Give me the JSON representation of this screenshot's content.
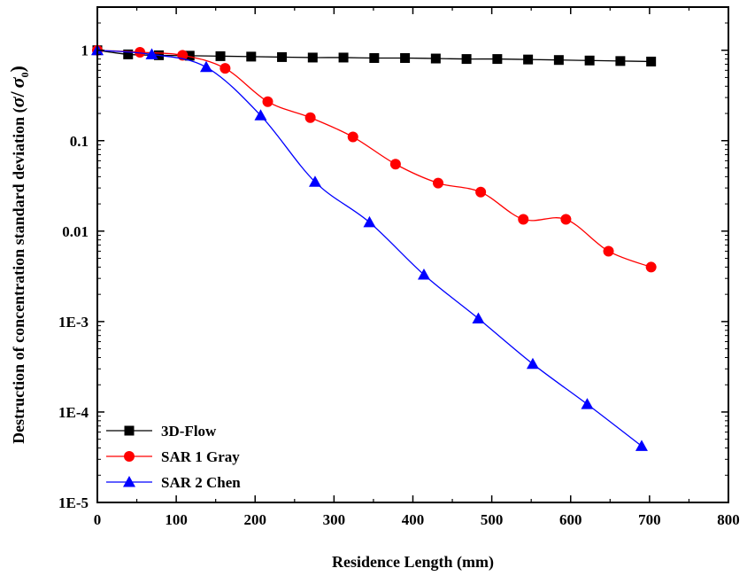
{
  "chart_data": {
    "type": "line",
    "xlabel": "Residence Length (mm)",
    "ylabel_text": "Destruction of concentration standard deviation (",
    "ylabel_sigma": "σ",
    "ylabel_slash": "/",
    "ylabel_sigma0": "σ",
    "ylabel_sub": "0",
    "ylabel_close": ")",
    "xlim": [
      0,
      800
    ],
    "ylim": [
      1e-05,
      3
    ],
    "yscale": "log",
    "x_ticks": [
      "0",
      "100",
      "200",
      "300",
      "400",
      "500",
      "600",
      "700",
      "800"
    ],
    "y_ticks": [
      "1E-5",
      "1E-4",
      "1E-3",
      "0.01",
      "0.1",
      "1"
    ],
    "legend_position": "bottom-left",
    "series": [
      {
        "name": "3D-Flow",
        "color": "#000000",
        "marker": "square",
        "x": [
          0,
          39,
          78,
          117,
          156,
          195,
          234,
          273,
          312,
          351,
          390,
          429,
          468,
          507,
          546,
          585,
          624,
          663,
          702
        ],
        "y": [
          1.0,
          0.9,
          0.88,
          0.87,
          0.86,
          0.85,
          0.84,
          0.83,
          0.83,
          0.82,
          0.82,
          0.81,
          0.8,
          0.8,
          0.79,
          0.78,
          0.77,
          0.76,
          0.75
        ]
      },
      {
        "name": "SAR 1 Gray",
        "color": "#ff0000",
        "marker": "circle",
        "x": [
          0,
          54,
          108,
          162,
          216,
          270,
          324,
          378,
          432,
          486,
          540,
          594,
          648,
          702
        ],
        "y": [
          1.0,
          0.95,
          0.88,
          0.63,
          0.27,
          0.18,
          0.11,
          0.055,
          0.034,
          0.027,
          0.0135,
          0.0135,
          0.006,
          0.004
        ]
      },
      {
        "name": "SAR 2 Chen",
        "color": "#0000ff",
        "marker": "triangle",
        "x": [
          0,
          69,
          138,
          207,
          276,
          345,
          414,
          483,
          552,
          621,
          690
        ],
        "y": [
          1.0,
          0.9,
          0.65,
          0.19,
          0.035,
          0.0125,
          0.0033,
          0.00108,
          0.00034,
          0.000122,
          4.2e-05
        ]
      }
    ]
  }
}
